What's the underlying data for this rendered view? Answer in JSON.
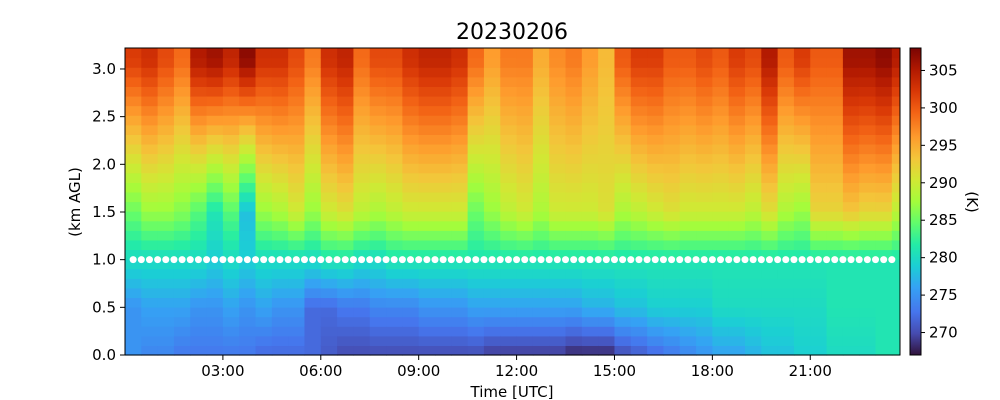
{
  "chart_data": {
    "type": "heatmap",
    "title": "20230206",
    "xlabel": "Time [UTC]",
    "ylabel": "(km AGL)",
    "colorbar_label": "(K)",
    "colormap": "turbo",
    "x_range_hours": [
      0,
      23.75
    ],
    "ylim": [
      0,
      3.1
    ],
    "vmin": 267,
    "vmax": 308,
    "x_ticks": [
      {
        "v": 3,
        "label": "03:00"
      },
      {
        "v": 6,
        "label": "06:00"
      },
      {
        "v": 9,
        "label": "09:00"
      },
      {
        "v": 12,
        "label": "12:00"
      },
      {
        "v": 15,
        "label": "15:00"
      },
      {
        "v": 18,
        "label": "18:00"
      },
      {
        "v": 21,
        "label": "21:00"
      }
    ],
    "y_ticks": [
      {
        "v": 0.0,
        "label": "0.0"
      },
      {
        "v": 0.5,
        "label": "0.5"
      },
      {
        "v": 1.0,
        "label": "1.0"
      },
      {
        "v": 1.5,
        "label": "1.5"
      },
      {
        "v": 2.0,
        "label": "2.0"
      },
      {
        "v": 2.5,
        "label": "2.5"
      },
      {
        "v": 3.0,
        "label": "3.0"
      }
    ],
    "colorbar_ticks": [
      {
        "v": 270,
        "label": "270"
      },
      {
        "v": 275,
        "label": "275"
      },
      {
        "v": 280,
        "label": "280"
      },
      {
        "v": 285,
        "label": "285"
      },
      {
        "v": 290,
        "label": "290"
      },
      {
        "v": 295,
        "label": "295"
      },
      {
        "v": 300,
        "label": "300"
      },
      {
        "v": 305,
        "label": "305"
      }
    ],
    "time_columns_hours": [
      0,
      0.5,
      1,
      1.5,
      2,
      2.5,
      3,
      3.5,
      4,
      4.5,
      5,
      5.5,
      6,
      6.5,
      7,
      7.5,
      8,
      8.5,
      9,
      9.5,
      10,
      10.5,
      11,
      11.5,
      12,
      12.5,
      13,
      13.5,
      14,
      14.5,
      15,
      15.5,
      16,
      16.5,
      17,
      17.5,
      18,
      18.5,
      19,
      19.5,
      20,
      20.5,
      21,
      21.5,
      22,
      22.5,
      23,
      23.5
    ],
    "height_levels_km": [
      0.0,
      0.5,
      1.0,
      1.5,
      2.0,
      2.5,
      3.0
    ],
    "temperature_top_K": [
      302,
      303,
      301,
      299,
      305,
      306,
      304,
      307,
      303,
      303,
      301,
      298,
      303,
      304,
      299,
      301,
      301,
      303,
      304,
      304,
      303,
      299,
      296,
      298,
      298,
      295,
      297,
      298,
      296,
      294,
      300,
      302,
      302,
      300,
      300,
      301,
      300,
      302,
      301,
      305,
      300,
      302,
      300,
      300,
      306,
      306,
      307,
      305
    ],
    "temperature_1p5km_K": [
      285,
      287,
      287,
      286,
      284,
      281,
      284,
      278,
      287,
      288,
      290,
      287,
      290,
      291,
      289,
      288,
      289,
      290,
      290,
      290,
      290,
      285,
      287,
      289,
      290,
      288,
      290,
      290,
      290,
      291,
      288,
      289,
      290,
      291,
      290,
      290,
      290,
      290,
      289,
      291,
      288,
      287,
      292,
      292,
      293,
      292,
      292,
      289
    ],
    "temperature_1km_K": [
      280,
      280,
      280,
      280,
      280,
      279,
      280,
      279,
      280,
      280,
      280,
      280,
      281,
      281,
      280,
      280,
      281,
      281,
      281,
      281,
      281,
      281,
      281,
      281,
      281,
      281,
      281,
      281,
      281,
      281,
      281,
      281,
      281,
      281,
      281,
      281,
      281,
      281,
      281,
      281,
      281,
      281,
      281,
      281,
      281,
      281,
      281,
      281
    ],
    "temperature_0p5km_K": [
      275,
      276,
      276,
      276,
      275,
      275,
      276,
      275,
      276,
      275,
      275,
      272,
      272,
      273,
      273,
      274,
      274,
      274,
      275,
      275,
      275,
      276,
      276,
      276,
      276,
      276,
      276,
      276,
      277,
      277,
      278,
      278,
      279,
      279,
      279,
      279,
      280,
      280,
      280,
      280,
      280,
      280,
      280,
      281,
      281,
      281,
      281,
      281
    ],
    "temperature_surface_K": [
      275,
      274,
      274,
      273,
      273,
      273,
      273,
      273,
      272,
      272,
      272,
      272,
      271,
      270,
      270,
      270,
      270,
      270,
      270,
      270,
      270,
      270,
      269,
      269,
      269,
      269,
      269,
      268,
      268,
      268,
      270,
      271,
      272,
      273,
      274,
      275,
      276,
      276,
      277,
      278,
      278,
      279,
      279,
      280,
      280,
      280,
      281,
      281
    ],
    "marker_line_km": 1.0
  }
}
